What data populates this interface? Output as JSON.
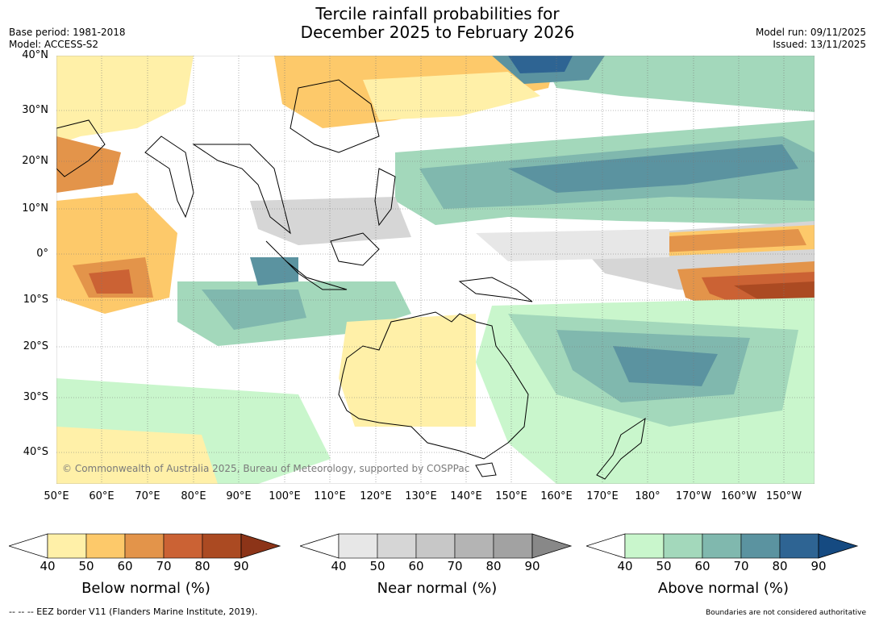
{
  "title": {
    "line1": "Tercile rainfall probabilities for",
    "line2": "December 2025 to February 2026"
  },
  "meta_left": {
    "base_period": "Base period: 1981-2018",
    "model": "Model: ACCESS-S2"
  },
  "meta_right": {
    "model_run": "Model run: 09/11/2025",
    "issued": "Issued: 13/11/2025"
  },
  "map": {
    "copyright": "© Commonwealth of Australia 2025, Bureau of Meteorology, supported by COSPPac",
    "lat_labels": [
      "40°N",
      "30°N",
      "20°N",
      "10°N",
      "0°",
      "10°S",
      "20°S",
      "30°S",
      "40°S"
    ],
    "lon_labels": [
      "50°E",
      "60°E",
      "70°E",
      "80°E",
      "90°E",
      "100°E",
      "110°E",
      "120°E",
      "130°E",
      "140°E",
      "150°E",
      "160°E",
      "170°E",
      "180°",
      "170°W",
      "160°W",
      "150°W"
    ]
  },
  "colorbars": [
    {
      "title": "Below normal (%)",
      "ticks": [
        "40",
        "50",
        "60",
        "70",
        "80",
        "90"
      ],
      "colors": [
        "#fff0a8",
        "#fdc96a",
        "#e3944a",
        "#cb6234",
        "#ab4a22"
      ],
      "extend_color": "#8c3418"
    },
    {
      "title": "Near normal (%)",
      "ticks": [
        "40",
        "50",
        "60",
        "70",
        "80",
        "90"
      ],
      "colors": [
        "#e7e7e7",
        "#d6d6d6",
        "#c7c7c7",
        "#b4b4b4",
        "#a2a2a2"
      ],
      "extend_color": "#888888"
    },
    {
      "title": "Above normal (%)",
      "ticks": [
        "40",
        "50",
        "60",
        "70",
        "80",
        "90"
      ],
      "colors": [
        "#c9f6cc",
        "#a3d8bb",
        "#80b8ae",
        "#5b93a0",
        "#2e6493"
      ],
      "extend_color": "#154a81"
    }
  ],
  "footer": {
    "eez_note": "--  --  -- EEZ border V11 (Flanders Marine Institute, 2019).",
    "disclaimer": "Boundaries are not considered authoritative"
  }
}
